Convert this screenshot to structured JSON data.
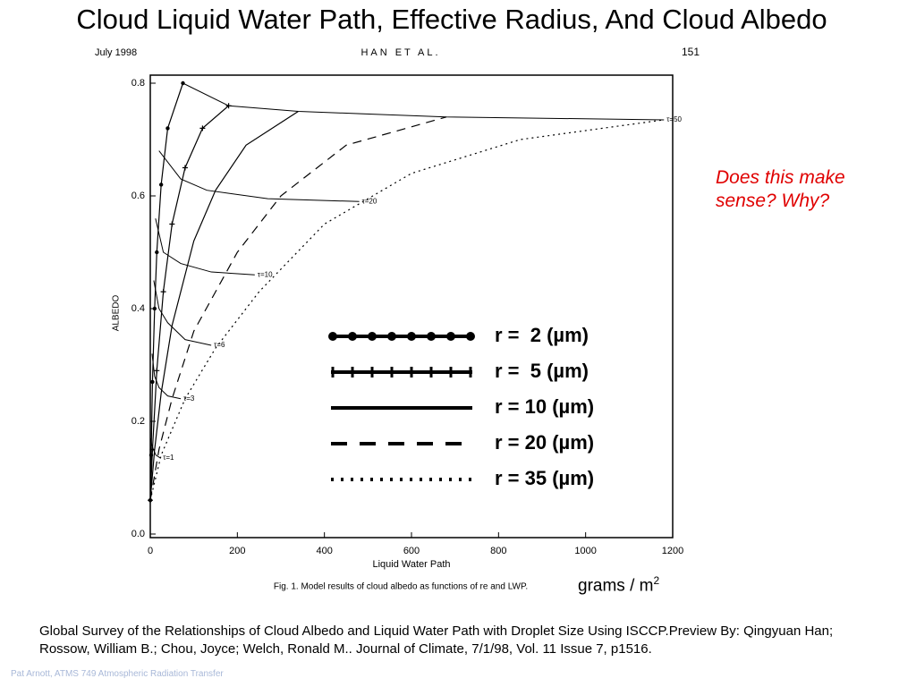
{
  "slide": {
    "title": "Cloud Liquid Water Path, Effective Radius, And Cloud Albedo",
    "journal_header": {
      "date": "July 1998",
      "authors": "HAN ET AL.",
      "page": "151"
    },
    "question": "Does this make sense?  Why?",
    "unit_note": {
      "text": "grams / m",
      "superscript": "2"
    },
    "citation": "Global Survey of the Relationships of Cloud Albedo and Liquid Water Path with Droplet Size Using ISCCP.Preview  By: Qingyuan Han; Rossow, William B.; Chou, Joyce; Welch, Ronald M.. Journal of Climate, 7/1/98, Vol. 11 Issue 7, p1516.",
    "footer": "Pat Arnott, ATMS 749 Atmospheric Radiation Transfer"
  },
  "chart_data": {
    "type": "line",
    "caption": "Fig. 1. Model results of cloud albedo as functions of re and LWP.",
    "x_label": "Liquid Water Path",
    "y_label": "ALBEDO",
    "xlim": [
      0,
      1200
    ],
    "xticks": [
      0,
      200,
      400,
      600,
      800,
      1000,
      1200
    ],
    "ylim": [
      0,
      0.8
    ],
    "yticks": [
      {
        "value": 0,
        "label": "0.0"
      },
      0.2,
      0.4,
      0.6,
      0.8
    ],
    "grid": false,
    "series": [
      {
        "name": "r =  2 (µm)",
        "color": "#000000",
        "style": "dots",
        "x": [
          0,
          2,
          5,
          10,
          15,
          25,
          40,
          75
        ],
        "values": [
          0.06,
          0.14,
          0.27,
          0.4,
          0.5,
          0.62,
          0.72,
          0.8
        ]
      },
      {
        "name": "r =  5 (µm)",
        "color": "#000000",
        "style": "plus",
        "x": [
          0,
          5,
          15,
          30,
          50,
          80,
          120,
          180
        ],
        "values": [
          0.06,
          0.15,
          0.29,
          0.43,
          0.55,
          0.65,
          0.72,
          0.76
        ]
      },
      {
        "name": "r = 10 (µm)",
        "color": "#000000",
        "style": "solid",
        "x": [
          0,
          10,
          25,
          50,
          100,
          150,
          220,
          340
        ],
        "values": [
          0.06,
          0.15,
          0.25,
          0.37,
          0.52,
          0.61,
          0.69,
          0.75
        ]
      },
      {
        "name": "r = 20 (µm)",
        "color": "#000000",
        "style": "dashed",
        "x": [
          0,
          20,
          50,
          100,
          200,
          300,
          450,
          680
        ],
        "values": [
          0.06,
          0.15,
          0.24,
          0.36,
          0.5,
          0.6,
          0.69,
          0.74
        ]
      },
      {
        "name": "r = 35 (µm)",
        "color": "#000000",
        "style": "dotted",
        "x": [
          0,
          25,
          80,
          150,
          250,
          400,
          600,
          850,
          1180
        ],
        "values": [
          0.06,
          0.14,
          0.24,
          0.33,
          0.43,
          0.55,
          0.64,
          0.7,
          0.735
        ]
      }
    ],
    "tau_curves": [
      {
        "name": "τ=50",
        "x": [
          75,
          180,
          340,
          680,
          1180
        ],
        "values": [
          0.8,
          0.76,
          0.75,
          0.74,
          0.735
        ]
      },
      {
        "name": "τ=20",
        "x": [
          20,
          70,
          130,
          270,
          480
        ],
        "values": [
          0.68,
          0.63,
          0.61,
          0.595,
          0.59
        ]
      },
      {
        "name": "τ=10",
        "x": [
          12,
          30,
          70,
          140,
          240
        ],
        "values": [
          0.56,
          0.5,
          0.48,
          0.465,
          0.46
        ]
      },
      {
        "name": "τ=6",
        "x": [
          8,
          20,
          40,
          80,
          140
        ],
        "values": [
          0.45,
          0.4,
          0.375,
          0.345,
          0.335
        ]
      },
      {
        "name": "τ=3",
        "x": [
          4,
          10,
          20,
          40,
          70
        ],
        "values": [
          0.32,
          0.28,
          0.26,
          0.245,
          0.24
        ]
      },
      {
        "name": "τ=1",
        "x": [
          1,
          3,
          7,
          13,
          23
        ],
        "values": [
          0.17,
          0.16,
          0.15,
          0.14,
          0.135
        ]
      }
    ]
  }
}
